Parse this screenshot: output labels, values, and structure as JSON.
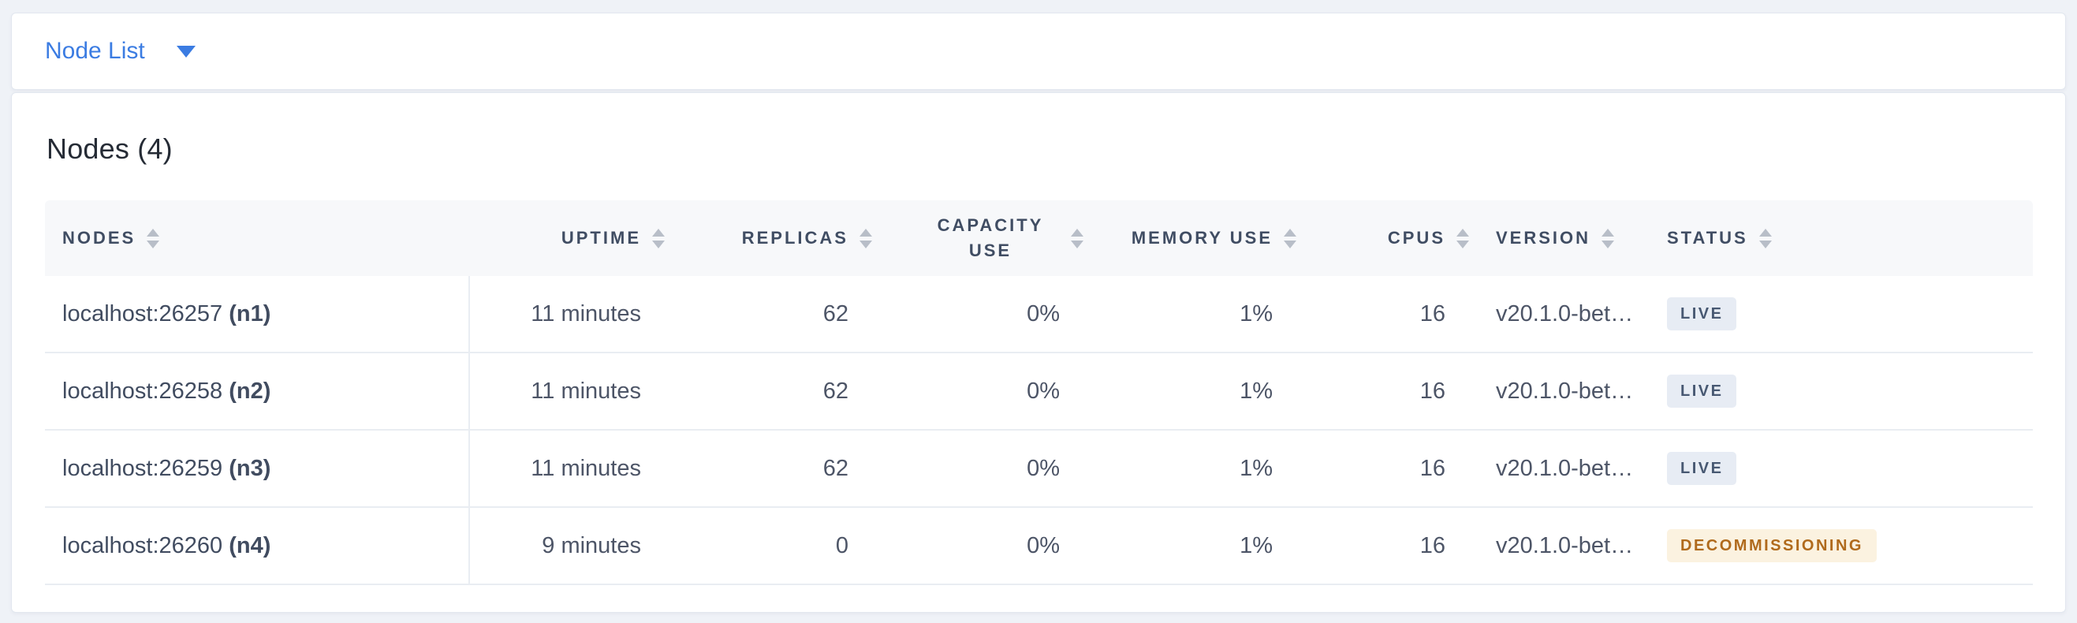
{
  "colors": {
    "accent": "#3b7ce2",
    "live_badge_bg": "#e7ecf4",
    "live_badge_text": "#475872",
    "decommissioning_badge_bg": "#fbf2e0",
    "decommissioning_badge_text": "#b06a1c"
  },
  "toolbar": {
    "view_label": "Node List"
  },
  "summary": {
    "title": "Nodes (4)"
  },
  "table": {
    "columns": [
      {
        "key": "node",
        "label": "NODES",
        "align": "left"
      },
      {
        "key": "uptime",
        "label": "UPTIME",
        "align": "right"
      },
      {
        "key": "replicas",
        "label": "REPLICAS",
        "align": "right"
      },
      {
        "key": "capacity_use",
        "label": "CAPACITY USE",
        "align": "right",
        "wrap": true
      },
      {
        "key": "memory_use",
        "label": "MEMORY USE",
        "align": "right"
      },
      {
        "key": "cpus",
        "label": "CPUS",
        "align": "right"
      },
      {
        "key": "version",
        "label": "VERSION",
        "align": "left"
      },
      {
        "key": "status",
        "label": "STATUS",
        "align": "left"
      }
    ],
    "rows": [
      {
        "node_address": "localhost:26257",
        "node_id": "(n1)",
        "uptime": "11 minutes",
        "replicas": "62",
        "capacity_use": "0%",
        "memory_use": "1%",
        "cpus": "16",
        "version": "v20.1.0-bet…",
        "status": "LIVE",
        "status_variant": "live"
      },
      {
        "node_address": "localhost:26258",
        "node_id": "(n2)",
        "uptime": "11 minutes",
        "replicas": "62",
        "capacity_use": "0%",
        "memory_use": "1%",
        "cpus": "16",
        "version": "v20.1.0-bet…",
        "status": "LIVE",
        "status_variant": "live"
      },
      {
        "node_address": "localhost:26259",
        "node_id": "(n3)",
        "uptime": "11 minutes",
        "replicas": "62",
        "capacity_use": "0%",
        "memory_use": "1%",
        "cpus": "16",
        "version": "v20.1.0-bet…",
        "status": "LIVE",
        "status_variant": "live"
      },
      {
        "node_address": "localhost:26260",
        "node_id": "(n4)",
        "uptime": "9 minutes",
        "replicas": "0",
        "capacity_use": "0%",
        "memory_use": "1%",
        "cpus": "16",
        "version": "v20.1.0-bet…",
        "status": "DECOMMISSIONING",
        "status_variant": "decommissioning"
      }
    ]
  }
}
